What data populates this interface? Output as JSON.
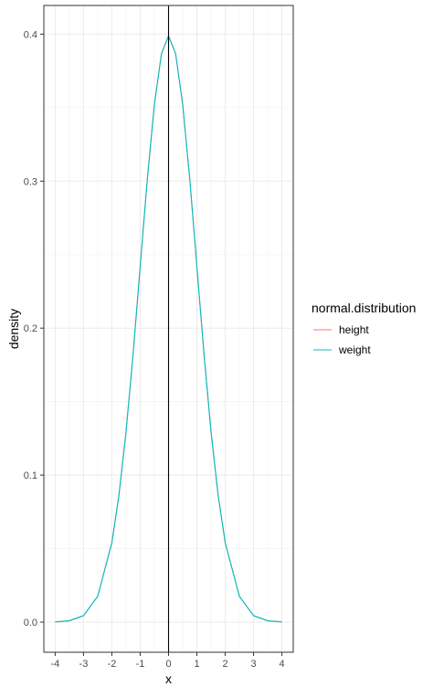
{
  "chart_data": {
    "type": "line",
    "title": "",
    "xlabel": "x",
    "ylabel": "density",
    "xlim": [
      -4.4,
      4.4
    ],
    "ylim": [
      -0.0205,
      0.4195
    ],
    "x_ticks": [
      -4,
      -3,
      -2,
      -1,
      0,
      1,
      2,
      3,
      4
    ],
    "x_tick_labels": [
      "-4",
      "-3",
      "-2",
      "-1",
      "0",
      "1",
      "2",
      "3",
      "4"
    ],
    "y_ticks": [
      0.0,
      0.1,
      0.2,
      0.3,
      0.4
    ],
    "y_tick_labels": [
      "0.0",
      "0.1",
      "0.2",
      "0.3",
      "0.4"
    ],
    "grid": true,
    "vertical_line_x": 0,
    "legend": {
      "title": "normal.distribution",
      "position": "right",
      "entries": [
        "height",
        "weight"
      ]
    },
    "series": [
      {
        "name": "height",
        "color": "#F8766D",
        "x": [
          -4.0,
          -3.5,
          -3.0,
          -2.5,
          -2.0,
          -1.75,
          -1.5,
          -1.25,
          -1.0,
          -0.75,
          -0.5,
          -0.25,
          0.0,
          0.25,
          0.5,
          0.75,
          1.0,
          1.25,
          1.5,
          1.75,
          2.0,
          2.5,
          3.0,
          3.5,
          4.0
        ],
        "y": [
          0.0001,
          0.0009,
          0.0044,
          0.0175,
          0.054,
          0.0863,
          0.1295,
          0.1826,
          0.242,
          0.3011,
          0.3521,
          0.3867,
          0.3989,
          0.3867,
          0.3521,
          0.3011,
          0.242,
          0.1826,
          0.1295,
          0.0863,
          0.054,
          0.0175,
          0.0044,
          0.0009,
          0.0001
        ]
      },
      {
        "name": "weight",
        "color": "#00BFC4",
        "x": [
          -4.0,
          -3.5,
          -3.0,
          -2.5,
          -2.0,
          -1.75,
          -1.5,
          -1.25,
          -1.0,
          -0.75,
          -0.5,
          -0.25,
          0.0,
          0.25,
          0.5,
          0.75,
          1.0,
          1.25,
          1.5,
          1.75,
          2.0,
          2.5,
          3.0,
          3.5,
          4.0
        ],
        "y": [
          0.0001,
          0.0009,
          0.0044,
          0.0175,
          0.054,
          0.0863,
          0.1295,
          0.1826,
          0.242,
          0.3011,
          0.3521,
          0.3867,
          0.3989,
          0.3867,
          0.3521,
          0.3011,
          0.242,
          0.1826,
          0.1295,
          0.0863,
          0.054,
          0.0175,
          0.0044,
          0.0009,
          0.0001
        ]
      }
    ]
  }
}
